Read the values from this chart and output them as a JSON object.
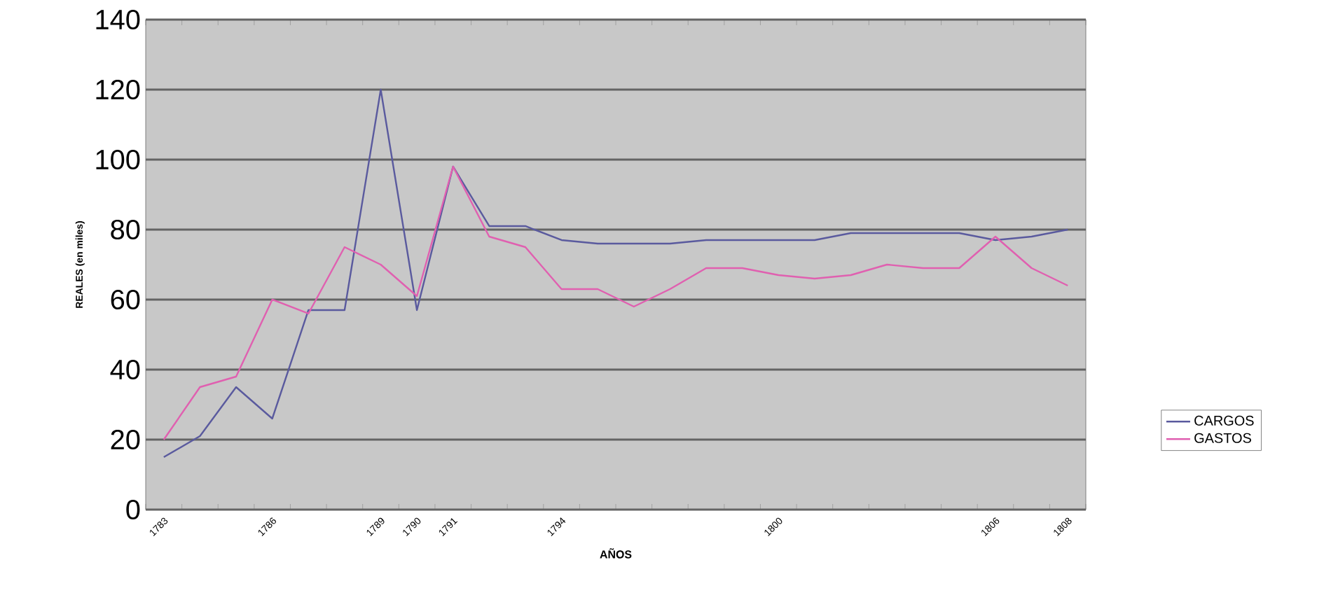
{
  "chart_data": {
    "type": "line",
    "xlabel": "AÑOS",
    "ylabel": "REALES (en miles)",
    "categories": [
      "1783",
      null,
      null,
      "1786",
      null,
      null,
      "1789",
      "1790",
      "1791",
      null,
      null,
      "1794",
      null,
      null,
      null,
      null,
      null,
      "1800",
      null,
      null,
      null,
      null,
      null,
      "1806",
      null,
      "1808"
    ],
    "series": [
      {
        "name": "CARGOS",
        "color": "#5a5a9e",
        "values": [
          15,
          21,
          35,
          26,
          57,
          57,
          120,
          57,
          98,
          81,
          81,
          77,
          76,
          76,
          76,
          77,
          77,
          77,
          77,
          79,
          79,
          79,
          79,
          77,
          78,
          80
        ]
      },
      {
        "name": "GASTOS",
        "color": "#e060b0",
        "values": [
          20,
          35,
          38,
          60,
          56,
          75,
          70,
          61,
          98,
          78,
          75,
          63,
          63,
          58,
          63,
          69,
          69,
          67,
          66,
          67,
          70,
          69,
          69,
          78,
          69,
          64
        ]
      }
    ],
    "ylim": [
      0,
      140
    ],
    "yticks": [
      0,
      20,
      40,
      60,
      80,
      100,
      120,
      140
    ],
    "grid": "y",
    "legend": "right",
    "marker": "none",
    "line_style": "solid"
  }
}
